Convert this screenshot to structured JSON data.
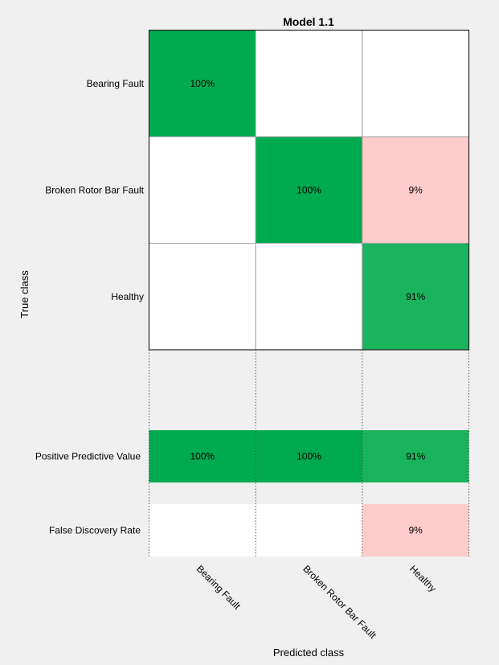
{
  "chart_data": {
    "type": "heatmap",
    "title": "Model 1.1",
    "xlabel": "Predicted class",
    "ylabel": "True class",
    "classes": [
      "Bearing Fault",
      "Broken Rotor Bar Fault",
      "Healthy"
    ],
    "matrix_percent_labels": [
      [
        "100%",
        "",
        ""
      ],
      [
        "",
        "100%",
        "9%"
      ],
      [
        "",
        "",
        "91%"
      ]
    ],
    "matrix_values": [
      [
        100,
        0,
        0
      ],
      [
        0,
        100,
        9
      ],
      [
        0,
        0,
        91
      ]
    ],
    "summary_rows": [
      {
        "label": "Positive Predictive Value",
        "labels": [
          "100%",
          "100%",
          "91%"
        ],
        "values": [
          100,
          100,
          91
        ]
      },
      {
        "label": "False Discovery Rate",
        "labels": [
          "",
          "",
          "9%"
        ],
        "values": [
          0,
          0,
          9
        ]
      }
    ],
    "colors": {
      "correct": "#00aa4f",
      "incorrect": "#ffcccc",
      "empty": "#ffffff",
      "background": "#f0f0f0"
    }
  }
}
